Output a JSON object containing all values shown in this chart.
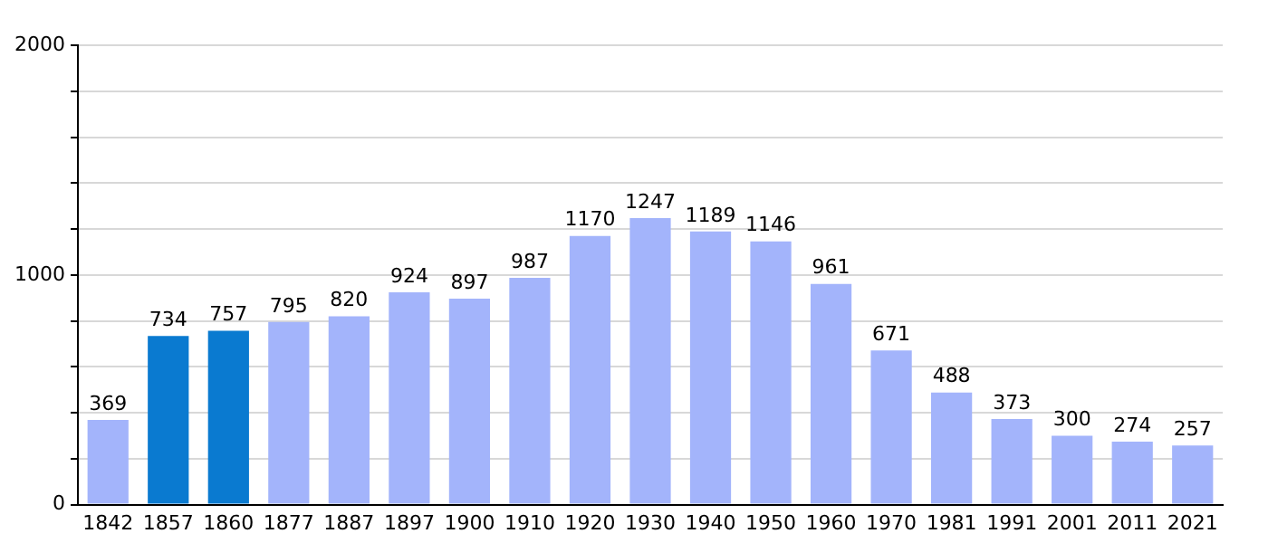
{
  "chart_data": {
    "type": "bar",
    "categories": [
      "1842",
      "1857",
      "1860",
      "1877",
      "1887",
      "1897",
      "1900",
      "1910",
      "1920",
      "1930",
      "1940",
      "1950",
      "1960",
      "1970",
      "1981",
      "1991",
      "2001",
      "2011",
      "2021"
    ],
    "values": [
      369,
      734,
      757,
      795,
      820,
      924,
      897,
      987,
      1170,
      1247,
      1189,
      1146,
      961,
      671,
      488,
      373,
      300,
      274,
      257
    ],
    "colors": [
      "#a3b4fb",
      "#0a7ad0",
      "#0a7ad0",
      "#a3b4fb",
      "#a3b4fb",
      "#a3b4fb",
      "#a3b4fb",
      "#a3b4fb",
      "#a3b4fb",
      "#a3b4fb",
      "#a3b4fb",
      "#a3b4fb",
      "#a3b4fb",
      "#a3b4fb",
      "#a3b4fb",
      "#a3b4fb",
      "#a3b4fb",
      "#a3b4fb",
      "#a3b4fb"
    ],
    "ylim": [
      0,
      2000
    ],
    "yticks": [
      0,
      {
        "value": 200,
        "label": null
      },
      {
        "value": 400,
        "label": null
      },
      {
        "value": 600,
        "label": null
      },
      {
        "value": 800,
        "label": null
      },
      1000,
      {
        "value": 1200,
        "label": null
      },
      {
        "value": 1400,
        "label": null
      },
      {
        "value": 1600,
        "label": null
      },
      {
        "value": 1800,
        "label": null
      },
      2000
    ],
    "grid": "y",
    "data_labels": true
  }
}
